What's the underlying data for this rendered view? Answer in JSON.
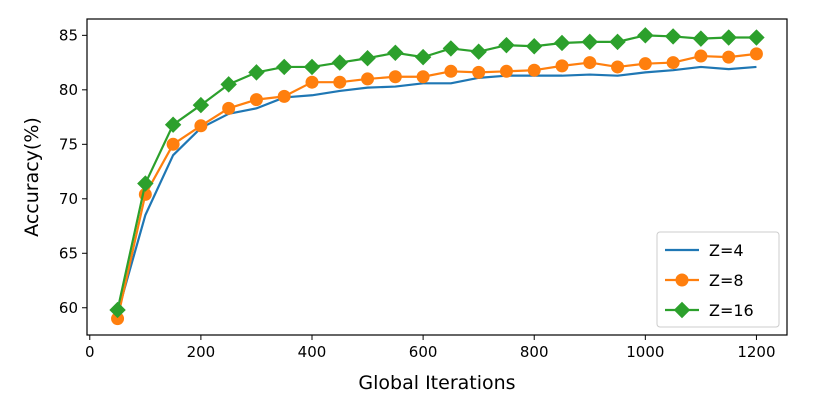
{
  "chart_data": {
    "type": "line",
    "xlabel": "Global Iterations",
    "ylabel": "Accuracy(%)",
    "xlim": [
      -5,
      1255
    ],
    "ylim": [
      57.5,
      86.5
    ],
    "xticks": [
      0,
      200,
      400,
      600,
      800,
      1000,
      1200
    ],
    "yticks": [
      60,
      65,
      70,
      75,
      80,
      85
    ],
    "grid": false,
    "legend_position": "bottom-right",
    "x": [
      50,
      100,
      150,
      200,
      250,
      300,
      350,
      400,
      450,
      500,
      550,
      600,
      650,
      700,
      750,
      800,
      850,
      900,
      950,
      1000,
      1050,
      1100,
      1150,
      1200
    ],
    "series": [
      {
        "name": "Z=4",
        "color": "#1f77b4",
        "marker": "none",
        "values": [
          59.5,
          68.5,
          74.0,
          76.5,
          77.8,
          78.3,
          79.3,
          79.5,
          79.9,
          80.2,
          80.3,
          80.6,
          80.6,
          81.1,
          81.3,
          81.3,
          81.3,
          81.4,
          81.3,
          81.6,
          81.8,
          82.1,
          81.9,
          82.1
        ]
      },
      {
        "name": "Z=8",
        "color": "#ff7f0e",
        "marker": "circle",
        "values": [
          59.0,
          70.4,
          75.0,
          76.7,
          78.3,
          79.1,
          79.4,
          80.7,
          80.7,
          81.0,
          81.2,
          81.2,
          81.7,
          81.6,
          81.7,
          81.8,
          82.2,
          82.5,
          82.1,
          82.4,
          82.5,
          83.1,
          83.0,
          83.3
        ]
      },
      {
        "name": "Z=16",
        "color": "#2ca02c",
        "marker": "diamond",
        "values": [
          59.8,
          71.4,
          76.8,
          78.6,
          80.5,
          81.6,
          82.1,
          82.1,
          82.5,
          82.9,
          83.4,
          83.0,
          83.8,
          83.5,
          84.1,
          84.0,
          84.3,
          84.4,
          84.4,
          85.0,
          84.9,
          84.7,
          84.8,
          84.8
        ]
      }
    ]
  }
}
